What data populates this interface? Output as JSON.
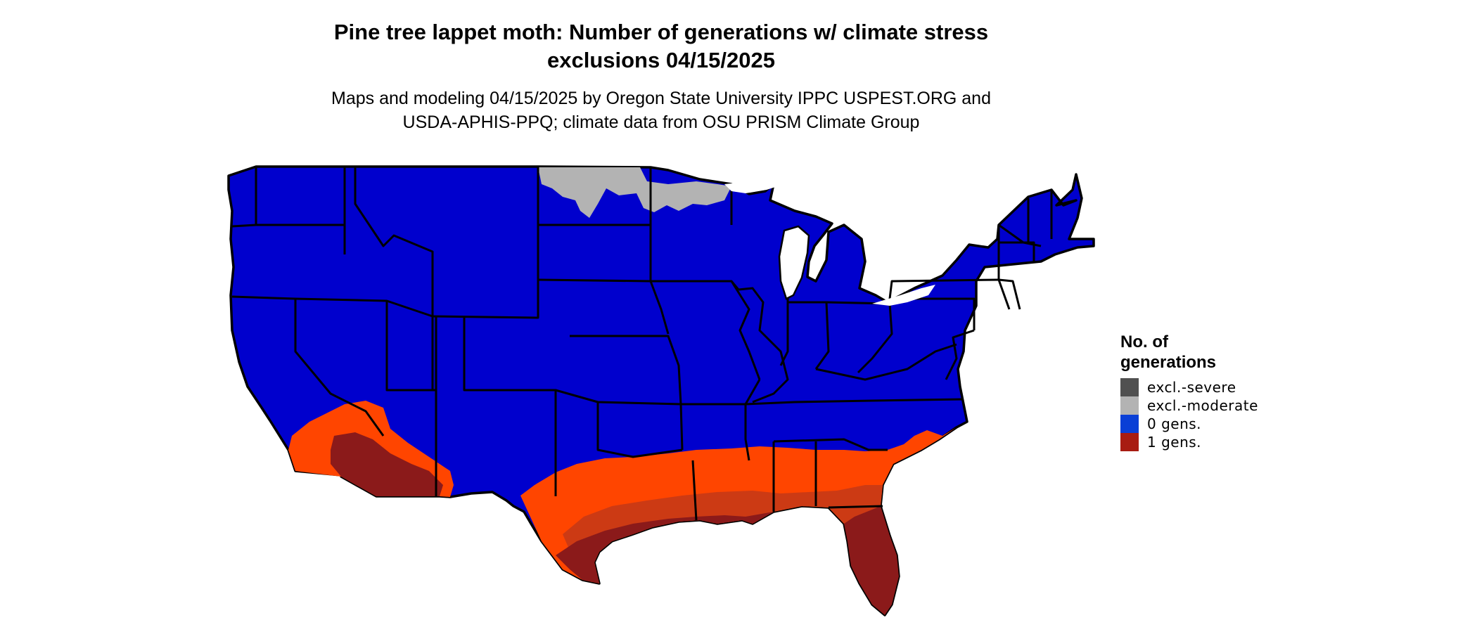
{
  "title_line1": "Pine tree lappet moth: Number of generations w/ climate stress",
  "title_line2": "exclusions 04/15/2025",
  "subtitle_line1": "Maps and modeling 04/15/2025 by Oregon State University IPPC USPEST.ORG and",
  "subtitle_line2": "USDA-APHIS-PPQ; climate data from OSU PRISM Climate Group",
  "legend": {
    "title_line1": "No. of",
    "title_line2": "generations",
    "items": [
      {
        "label": "excl.-severe",
        "color": "#505050"
      },
      {
        "label": "excl.-moderate",
        "color": "#b3b3b3"
      },
      {
        "label": "0 gens.",
        "color": "#0a3fd6"
      },
      {
        "label": "1 gens.",
        "color": "#a81c12"
      }
    ]
  },
  "colors": {
    "zero_generations_fill": "#0000cd",
    "excluded_moderate_fill": "#b3b3b3",
    "one_generation_light": "#ff4500",
    "one_generation_mid": "#cc3a14",
    "one_generation_dark": "#8b1a1a",
    "borders": "#000000"
  }
}
